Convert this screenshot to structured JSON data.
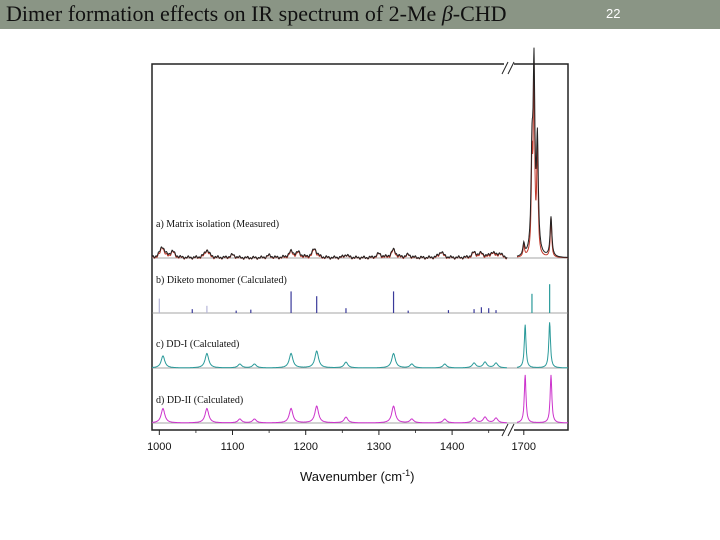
{
  "slide": {
    "title_prefix": "Dimer formation effects on IR spectrum of 2-Me ",
    "title_beta": "β",
    "title_suffix": "-CHD",
    "page_number": "22"
  },
  "colors": {
    "title_bar": "#8a9585",
    "measured_red": "#c0392b",
    "measured_black": "#222222",
    "monomer_blue": "#3a3a9a",
    "dd1_teal": "#2a9a9a",
    "dd2_magenta": "#cc33cc"
  },
  "chart_data": {
    "type": "line",
    "xlabel_main": "Wavenumber (cm",
    "xlabel_sup": "-1",
    "xlabel_end": ")",
    "x_ticks": [
      "1000",
      "1100",
      "1200",
      "1300",
      "1400",
      "1700"
    ],
    "axis_segments": [
      {
        "range": [
          990,
          1475
        ]
      },
      {
        "range": [
          1690,
          1765
        ]
      }
    ],
    "series": [
      {
        "name": "a) Matrix isolation (Measured)",
        "kind": "line",
        "peaks": [
          [
            1004,
            0.055
          ],
          [
            1018,
            0.03
          ],
          [
            1065,
            0.04
          ],
          [
            1100,
            0.015
          ],
          [
            1150,
            0.012
          ],
          [
            1180,
            0.03
          ],
          [
            1190,
            0.025
          ],
          [
            1212,
            0.045
          ],
          [
            1255,
            0.015
          ],
          [
            1300,
            0.02
          ],
          [
            1320,
            0.04
          ],
          [
            1340,
            0.015
          ],
          [
            1385,
            0.03
          ],
          [
            1430,
            0.025
          ],
          [
            1440,
            0.02
          ],
          [
            1455,
            0.025
          ],
          [
            1465,
            0.02
          ],
          [
            1700,
            0.06
          ],
          [
            1712,
            0.45
          ],
          [
            1715,
            0.9
          ],
          [
            1720,
            0.55
          ],
          [
            1740,
            0.2
          ]
        ]
      },
      {
        "name": "b) Diketo monomer (Calculated)",
        "kind": "stick",
        "peaks": [
          [
            1000,
            0.3
          ],
          [
            1045,
            0.08
          ],
          [
            1065,
            0.15
          ],
          [
            1105,
            0.05
          ],
          [
            1125,
            0.07
          ],
          [
            1180,
            0.45
          ],
          [
            1215,
            0.35
          ],
          [
            1255,
            0.1
          ],
          [
            1320,
            0.45
          ],
          [
            1340,
            0.05
          ],
          [
            1395,
            0.06
          ],
          [
            1430,
            0.08
          ],
          [
            1440,
            0.12
          ],
          [
            1450,
            0.1
          ],
          [
            1460,
            0.06
          ],
          [
            1712,
            0.4
          ],
          [
            1738,
            0.6
          ]
        ]
      },
      {
        "name": "c) DD-I (Calculated)",
        "kind": "line",
        "peaks": [
          [
            1005,
            0.25
          ],
          [
            1065,
            0.3
          ],
          [
            1110,
            0.08
          ],
          [
            1130,
            0.08
          ],
          [
            1180,
            0.3
          ],
          [
            1215,
            0.35
          ],
          [
            1255,
            0.12
          ],
          [
            1320,
            0.3
          ],
          [
            1345,
            0.08
          ],
          [
            1390,
            0.08
          ],
          [
            1430,
            0.1
          ],
          [
            1445,
            0.12
          ],
          [
            1460,
            0.1
          ],
          [
            1702,
            0.9
          ],
          [
            1738,
            0.95
          ]
        ]
      },
      {
        "name": "d) DD-II (Calculated)",
        "kind": "line",
        "peaks": [
          [
            1005,
            0.3
          ],
          [
            1065,
            0.3
          ],
          [
            1110,
            0.08
          ],
          [
            1130,
            0.08
          ],
          [
            1180,
            0.3
          ],
          [
            1215,
            0.35
          ],
          [
            1255,
            0.12
          ],
          [
            1320,
            0.35
          ],
          [
            1345,
            0.08
          ],
          [
            1390,
            0.08
          ],
          [
            1430,
            0.1
          ],
          [
            1445,
            0.12
          ],
          [
            1460,
            0.1
          ],
          [
            1702,
            1.0
          ],
          [
            1740,
            1.0
          ]
        ]
      }
    ]
  }
}
